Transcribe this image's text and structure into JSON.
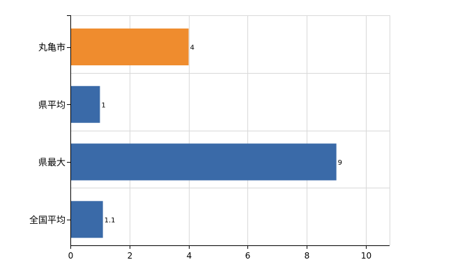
{
  "chart_data": {
    "type": "bar",
    "orientation": "horizontal",
    "categories": [
      "丸亀市",
      "県平均",
      "県最大",
      "全国平均"
    ],
    "values": [
      4,
      1,
      9,
      1.1
    ],
    "value_labels": [
      "4",
      "1",
      "9",
      "1.1"
    ],
    "bar_colors": [
      "#ef8c2e",
      "#3a6aa8",
      "#3a6aa8",
      "#3a6aa8"
    ],
    "xlim": [
      0,
      10.8
    ],
    "xticks": [
      0,
      2,
      4,
      6,
      8,
      10
    ],
    "grid": true,
    "title": "",
    "xlabel": "",
    "ylabel": ""
  }
}
